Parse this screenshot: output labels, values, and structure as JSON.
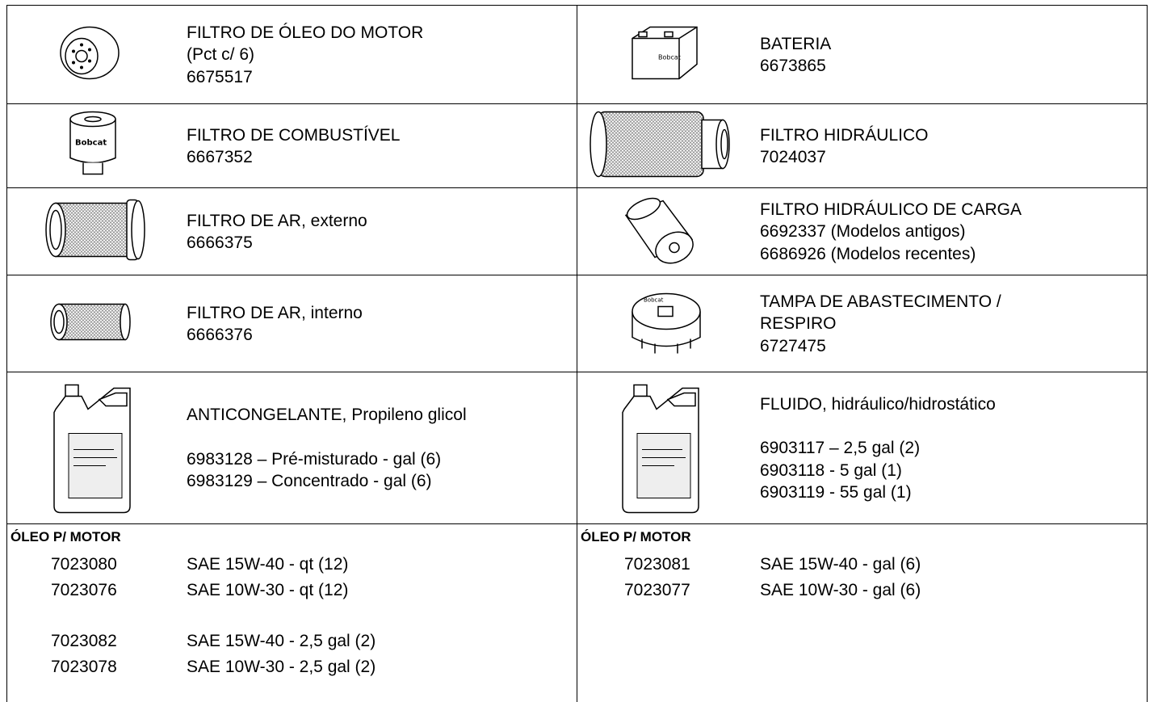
{
  "rows": [
    [
      {
        "lines": [
          "FILTRO DE ÓLEO DO MOTOR",
          "(Pct c/ 6)",
          "6675517"
        ]
      },
      {
        "lines": [
          "BATERIA",
          "6673865"
        ]
      }
    ],
    [
      {
        "lines": [
          "FILTRO DE COMBUSTÍVEL",
          "6667352"
        ]
      },
      {
        "lines": [
          "FILTRO HIDRÁULICO",
          "7024037"
        ]
      }
    ],
    [
      {
        "lines": [
          "FILTRO DE AR, externo",
          "6666375"
        ]
      },
      {
        "lines": [
          "FILTRO HIDRÁULICO DE CARGA",
          "6692337 (Modelos antigos)",
          "6686926 (Modelos recentes)"
        ]
      }
    ],
    [
      {
        "lines": [
          "FILTRO DE AR, interno",
          "6666376"
        ]
      },
      {
        "lines": [
          "TAMPA DE ABASTECIMENTO /",
          "RESPIRO",
          "6727475"
        ]
      }
    ],
    [
      {
        "lines": [
          "ANTICONGELANTE, Propileno glicol"
        ],
        "codes": [
          "6983128 – Pré-misturado - gal (6)",
          "6983129 – Concentrado - gal (6)"
        ]
      },
      {
        "lines": [
          "FLUIDO, hidráulico/hidrostático"
        ],
        "codes": [
          "6903117 – 2,5 gal (2)",
          "6903118 - 5 gal (1)",
          "6903119 - 55 gal (1)"
        ]
      }
    ]
  ],
  "oil": [
    {
      "title": "ÓLEO P/ MOTOR",
      "groups": [
        [
          {
            "code": "7023080",
            "desc": "SAE 15W-40 - qt (12)"
          },
          {
            "code": "7023076",
            "desc": "SAE 10W-30 - qt (12)"
          }
        ],
        [
          {
            "code": "7023082",
            "desc": "SAE 15W-40 - 2,5 gal (2)"
          },
          {
            "code": "7023078",
            "desc": "SAE 10W-30 - 2,5 gal (2)"
          }
        ]
      ]
    },
    {
      "title": "ÓLEO P/ MOTOR",
      "groups": [
        [
          {
            "code": "7023081",
            "desc": "SAE 15W-40 - gal (6)"
          },
          {
            "code": "7023077",
            "desc": "SAE 10W-30 - gal (6)"
          }
        ]
      ]
    }
  ]
}
